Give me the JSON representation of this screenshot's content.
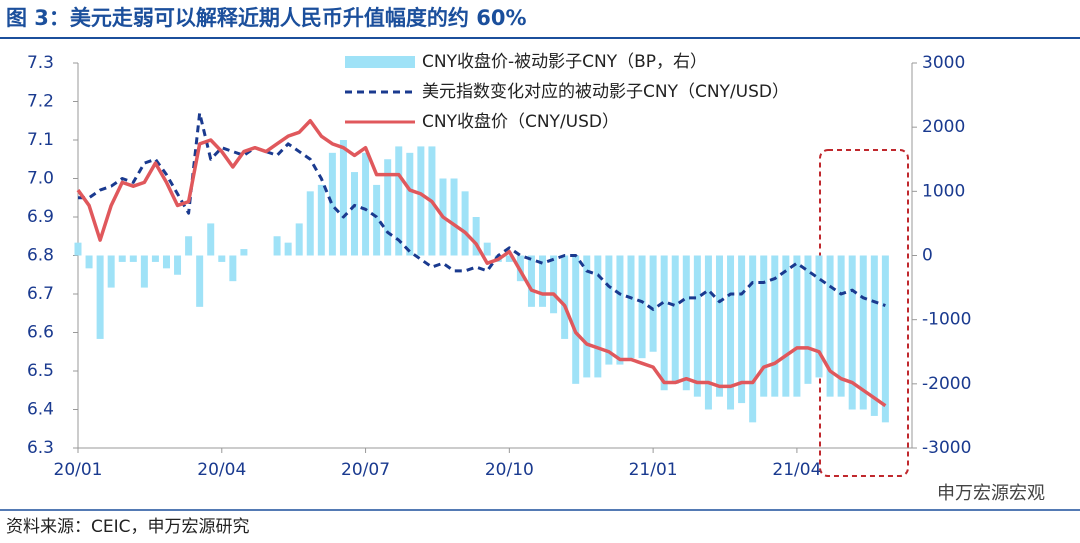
{
  "chart_data": {
    "type": "bar-line",
    "title": "图 3：美元走弱可以解释近期人民币升值幅度的约 60%",
    "source": "资料来源：CEIC，申万宏源研究",
    "watermark": "申万宏源宏观",
    "categories": [
      "20/01",
      null,
      null,
      null,
      null,
      null,
      null,
      null,
      null,
      null,
      null,
      null,
      null,
      "20/04",
      null,
      null,
      null,
      null,
      null,
      null,
      null,
      null,
      null,
      null,
      null,
      null,
      "20/07",
      null,
      null,
      null,
      null,
      null,
      null,
      null,
      null,
      null,
      null,
      null,
      null,
      "20/10",
      null,
      null,
      null,
      null,
      null,
      null,
      null,
      null,
      null,
      null,
      null,
      null,
      "21/01",
      null,
      null,
      null,
      null,
      null,
      null,
      null,
      null,
      null,
      null,
      null,
      null,
      "21/04",
      null,
      null,
      null,
      null,
      null,
      null,
      null,
      null
    ],
    "ylim": [
      6.3,
      7.3
    ],
    "yticks": [
      6.3,
      6.4,
      6.5,
      6.6,
      6.7,
      6.8,
      6.9,
      {
        "value": 7,
        "label": "7.0"
      },
      7.1,
      7.2,
      7.3
    ],
    "y2lim": [
      -3000,
      3000
    ],
    "y2ticks": [
      -3000,
      -2000,
      -1000,
      0,
      1000,
      2000,
      3000
    ],
    "series": [
      {
        "name": "CNY收盘价-被动影子CNY（BP，右）",
        "type": "bar",
        "axis": "y2",
        "color": "#9fe2f7",
        "values": [
          200,
          -200,
          -1300,
          -500,
          -100,
          -100,
          -500,
          -100,
          -200,
          -300,
          300,
          -800,
          500,
          -100,
          -400,
          100,
          0,
          0,
          300,
          200,
          500,
          1000,
          1100,
          1600,
          1800,
          1300,
          1600,
          1100,
          1500,
          1700,
          1600,
          1700,
          1700,
          1200,
          1200,
          1000,
          600,
          200,
          -100,
          -100,
          -400,
          -800,
          -800,
          -900,
          -1300,
          -2000,
          -1900,
          -1900,
          -1700,
          -1700,
          -1600,
          -1600,
          -1500,
          -2100,
          -2000,
          -2100,
          -2200,
          -2400,
          -2200,
          -2400,
          -2300,
          -2600,
          -2200,
          -2200,
          -2200,
          -2200,
          -2000,
          -1900,
          -2200,
          -2200,
          -2400,
          -2400,
          -2500,
          -2600
        ]
      },
      {
        "name": "美元指数变化对应的被动影子CNY（CNY/USD）",
        "type": "line",
        "style": "dashed",
        "color": "#1a3a8f",
        "values": [
          6.95,
          6.95,
          6.97,
          6.98,
          7.0,
          6.99,
          7.04,
          7.05,
          7.01,
          6.96,
          6.91,
          7.17,
          7.05,
          7.08,
          7.07,
          7.06,
          7.08,
          7.07,
          7.06,
          7.09,
          7.07,
          7.05,
          7.0,
          6.93,
          6.9,
          6.93,
          6.92,
          6.9,
          6.86,
          6.84,
          6.81,
          6.79,
          6.77,
          6.78,
          6.76,
          6.76,
          6.77,
          6.76,
          6.8,
          6.82,
          6.8,
          6.79,
          6.78,
          6.79,
          6.8,
          6.8,
          6.76,
          6.75,
          6.72,
          6.7,
          6.69,
          6.68,
          6.66,
          6.68,
          6.67,
          6.69,
          6.69,
          6.71,
          6.68,
          6.7,
          6.7,
          6.73,
          6.73,
          6.74,
          6.76,
          6.78,
          6.76,
          6.74,
          6.72,
          6.7,
          6.71,
          6.69,
          6.68,
          6.67
        ]
      },
      {
        "name": "CNY收盘价（CNY/USD）",
        "type": "line",
        "style": "solid",
        "color": "#e0585c",
        "values": [
          6.97,
          6.93,
          6.84,
          6.93,
          6.99,
          6.98,
          6.99,
          7.04,
          6.99,
          6.93,
          6.94,
          7.09,
          7.1,
          7.07,
          7.03,
          7.07,
          7.08,
          7.07,
          7.09,
          7.11,
          7.12,
          7.15,
          7.11,
          7.09,
          7.08,
          7.06,
          7.08,
          7.01,
          7.01,
          7.01,
          6.97,
          6.96,
          6.94,
          6.9,
          6.88,
          6.86,
          6.83,
          6.78,
          6.79,
          6.81,
          6.76,
          6.71,
          6.7,
          6.7,
          6.67,
          6.6,
          6.57,
          6.56,
          6.55,
          6.53,
          6.53,
          6.52,
          6.51,
          6.47,
          6.47,
          6.48,
          6.47,
          6.47,
          6.46,
          6.46,
          6.47,
          6.47,
          6.51,
          6.52,
          6.54,
          6.56,
          6.56,
          6.55,
          6.5,
          6.48,
          6.47,
          6.45,
          6.43,
          6.41
        ]
      }
    ]
  }
}
